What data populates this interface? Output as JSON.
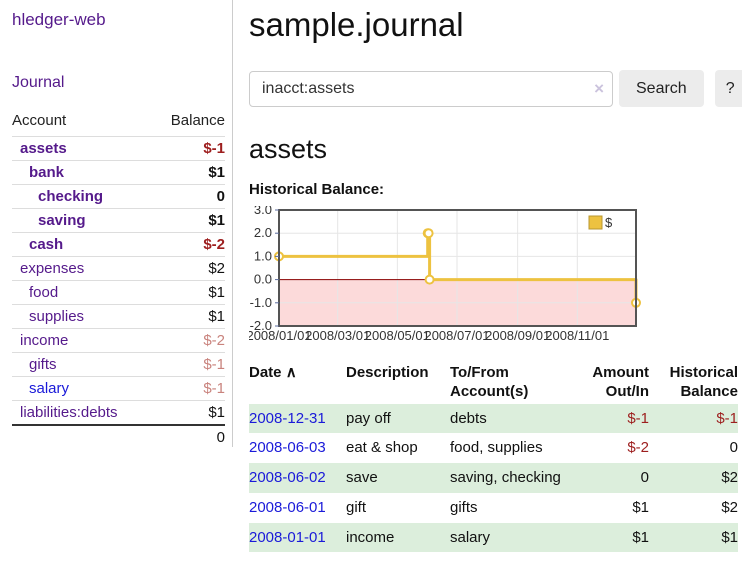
{
  "app": {
    "title": "hledger-web"
  },
  "sidebar": {
    "journal_label": "Journal",
    "accounts_table": {
      "headers": [
        "Account",
        "Balance"
      ],
      "rows": [
        {
          "name": "assets",
          "balance": "$-1",
          "indent": 1,
          "matched": true,
          "negative": "strong"
        },
        {
          "name": "bank",
          "balance": "$1",
          "indent": 2,
          "matched": true,
          "negative": "none"
        },
        {
          "name": "checking",
          "balance": "0",
          "indent": 3,
          "matched": true,
          "negative": "none"
        },
        {
          "name": "saving",
          "balance": "$1",
          "indent": 3,
          "matched": true,
          "negative": "none"
        },
        {
          "name": "cash",
          "balance": "$-2",
          "indent": 2,
          "matched": true,
          "negative": "strong"
        },
        {
          "name": "expenses",
          "balance": "$2",
          "indent": 1,
          "matched": false,
          "negative": "none"
        },
        {
          "name": "food",
          "balance": "$1",
          "indent": 2,
          "matched": false,
          "negative": "none"
        },
        {
          "name": "supplies",
          "balance": "$1",
          "indent": 2,
          "matched": false,
          "negative": "none"
        },
        {
          "name": "income",
          "balance": "$-2",
          "indent": 1,
          "matched": false,
          "negative": "faded"
        },
        {
          "name": "gifts",
          "balance": "$-1",
          "indent": 2,
          "matched": false,
          "negative": "faded"
        },
        {
          "name": "salary",
          "balance": "$-1",
          "indent": 2,
          "matched": false,
          "negative": "faded",
          "blue": true
        },
        {
          "name": "liabilities:debts",
          "balance": "$1",
          "indent": 1,
          "matched": false,
          "negative": "none"
        }
      ],
      "total": "0"
    }
  },
  "main": {
    "page_title": "sample.journal",
    "search": {
      "value": "inacct:assets",
      "clear_icon": "×",
      "button_label": "Search",
      "help_label": "?"
    },
    "section_title": "assets",
    "chart_label": "Historical Balance:",
    "register_table": {
      "sort_icon": "∧",
      "headers": {
        "date": "Date",
        "description": "Description",
        "accounts": "To/From Account(s)",
        "amount": "Amount Out/In",
        "balance": "Historical Balance"
      },
      "rows": [
        {
          "date": "2008-12-31",
          "description": "pay off",
          "accounts": "debts",
          "amount": "$-1",
          "amount_negative": true,
          "balance": "$-1",
          "balance_negative": true
        },
        {
          "date": "2008-06-03",
          "description": "eat & shop",
          "accounts": "food, supplies",
          "amount": "$-2",
          "amount_negative": true,
          "balance": "0",
          "balance_negative": false
        },
        {
          "date": "2008-06-02",
          "description": "save",
          "accounts": "saving, checking",
          "amount": "0",
          "amount_negative": false,
          "balance": "$2",
          "balance_negative": false
        },
        {
          "date": "2008-06-01",
          "description": "gift",
          "accounts": "gifts",
          "amount": "$1",
          "amount_negative": false,
          "balance": "$2",
          "balance_negative": false
        },
        {
          "date": "2008-01-01",
          "description": "income",
          "accounts": "salary",
          "amount": "$1",
          "amount_negative": false,
          "balance": "$1",
          "balance_negative": false
        }
      ]
    }
  },
  "chart_data": {
    "type": "line",
    "step": true,
    "title": "Historical Balance:",
    "legend": "$",
    "legend_position": "top-right",
    "grid": true,
    "xrange": [
      "2008-01-01",
      "2008-12-31"
    ],
    "ylim": [
      -2,
      3
    ],
    "yticks": [
      3.0,
      2.0,
      1.0,
      0.0,
      -1.0,
      -2.0
    ],
    "xticks": [
      "2008/01/01",
      "2008/03/01",
      "2008/05/01",
      "2008/07/01",
      "2008/09/01",
      "2008/11/01"
    ],
    "series": [
      {
        "name": "$",
        "color": "#edc240",
        "points": [
          {
            "date": "2008-01-01",
            "value": 1
          },
          {
            "date": "2008-06-01",
            "value": 2
          },
          {
            "date": "2008-06-02",
            "value": 2
          },
          {
            "date": "2008-06-03",
            "value": 0
          },
          {
            "date": "2008-12-31",
            "value": -1
          }
        ]
      }
    ],
    "colors": {
      "negative_region": "#fcdada",
      "zero_line": "#8b0000",
      "grid_line": "#e6e6e6",
      "border": "#545454",
      "tick": "#5b6b9d",
      "label": "#333333",
      "legend_swatch_border": "#b89730"
    }
  }
}
